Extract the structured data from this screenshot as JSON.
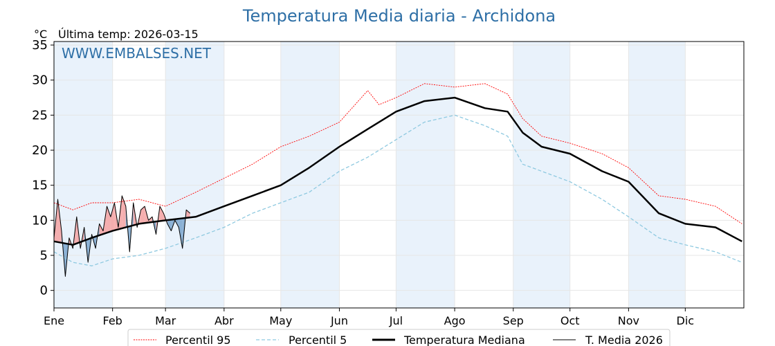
{
  "chart_data": {
    "type": "line",
    "title": "Temperatura Media diaria - Archidona",
    "unit_label": "°C",
    "subtitle": "Última temp: 2026-03-15",
    "watermark": "WWW.EMBALSES.NET",
    "ylim": [
      -2.5,
      35.5
    ],
    "yticks": [
      0,
      5,
      10,
      15,
      20,
      25,
      30,
      35
    ],
    "xlim": [
      0,
      365
    ],
    "months": [
      {
        "label": "Ene",
        "day": 0
      },
      {
        "label": "Feb",
        "day": 31
      },
      {
        "label": "Mar",
        "day": 59
      },
      {
        "label": "Abr",
        "day": 90
      },
      {
        "label": "May",
        "day": 120
      },
      {
        "label": "Jun",
        "day": 151
      },
      {
        "label": "Jul",
        "day": 181
      },
      {
        "label": "Ago",
        "day": 212
      },
      {
        "label": "Sep",
        "day": 243
      },
      {
        "label": "Oct",
        "day": 273
      },
      {
        "label": "Nov",
        "day": 304
      },
      {
        "label": "Dic",
        "day": 334
      }
    ],
    "grid": true,
    "legend_position": "bottom",
    "colors": {
      "p95": "#ff0000",
      "p5": "#8ec9e0",
      "median": "#000000",
      "current": "#000000",
      "above_fill": "#f4a6a6",
      "below_fill": "#7fa9cf",
      "band": "#e9f2fb",
      "title": "#2e6fa6"
    },
    "series": [
      {
        "key": "p95",
        "name": "Percentil 95",
        "days": [
          0,
          10,
          20,
          31,
          45,
          59,
          75,
          90,
          105,
          120,
          135,
          151,
          166,
          172,
          181,
          196,
          212,
          228,
          240,
          248,
          258,
          273,
          290,
          304,
          320,
          334,
          350,
          364
        ],
        "values": [
          12.5,
          11.5,
          12.5,
          12.5,
          13.0,
          12.0,
          14.0,
          16.0,
          18.0,
          20.5,
          22.0,
          24.0,
          28.5,
          26.5,
          27.5,
          29.5,
          29.0,
          29.5,
          28.0,
          24.5,
          22.0,
          21.0,
          19.5,
          17.5,
          13.5,
          13.0,
          12.0,
          9.5
        ]
      },
      {
        "key": "p5",
        "name": "Percentil 5",
        "days": [
          0,
          10,
          20,
          31,
          45,
          59,
          75,
          90,
          105,
          120,
          135,
          151,
          166,
          181,
          196,
          212,
          228,
          240,
          248,
          258,
          273,
          290,
          304,
          320,
          334,
          350,
          364
        ],
        "values": [
          5.5,
          4.0,
          3.5,
          4.5,
          5.0,
          6.0,
          7.5,
          9.0,
          11.0,
          12.5,
          14.0,
          17.0,
          19.0,
          21.5,
          24.0,
          25.0,
          23.5,
          22.0,
          18.0,
          17.0,
          15.5,
          13.0,
          10.5,
          7.5,
          6.5,
          5.5,
          4.0
        ]
      },
      {
        "key": "median",
        "name": "Temperatura Mediana",
        "days": [
          0,
          10,
          20,
          31,
          45,
          59,
          75,
          90,
          105,
          120,
          135,
          151,
          166,
          181,
          196,
          212,
          228,
          240,
          248,
          258,
          273,
          290,
          304,
          320,
          334,
          350,
          364
        ],
        "values": [
          7.0,
          6.5,
          7.5,
          8.5,
          9.5,
          10.0,
          10.5,
          12.0,
          13.5,
          15.0,
          17.5,
          20.5,
          23.0,
          25.5,
          27.0,
          27.5,
          26.0,
          25.5,
          22.5,
          20.5,
          19.5,
          17.0,
          15.5,
          11.0,
          9.5,
          9.0,
          7.0
        ]
      },
      {
        "key": "current",
        "name": "T. Media 2026",
        "days": [
          0,
          2,
          4,
          6,
          8,
          10,
          12,
          14,
          16,
          18,
          20,
          22,
          24,
          26,
          28,
          30,
          32,
          34,
          36,
          38,
          40,
          42,
          44,
          46,
          48,
          50,
          52,
          54,
          56,
          58,
          60,
          62,
          64,
          66,
          68,
          70,
          72
        ],
        "values": [
          7.5,
          13.0,
          8.5,
          2.0,
          7.5,
          6.0,
          10.5,
          6.0,
          9.0,
          4.0,
          8.0,
          6.0,
          9.5,
          8.5,
          12.0,
          10.5,
          12.5,
          9.0,
          13.5,
          12.0,
          5.5,
          12.5,
          9.0,
          11.5,
          12.0,
          10.0,
          10.5,
          8.0,
          12.0,
          11.0,
          9.5,
          8.5,
          10.0,
          9.0,
          6.0,
          11.5,
          11.0
        ]
      }
    ]
  }
}
